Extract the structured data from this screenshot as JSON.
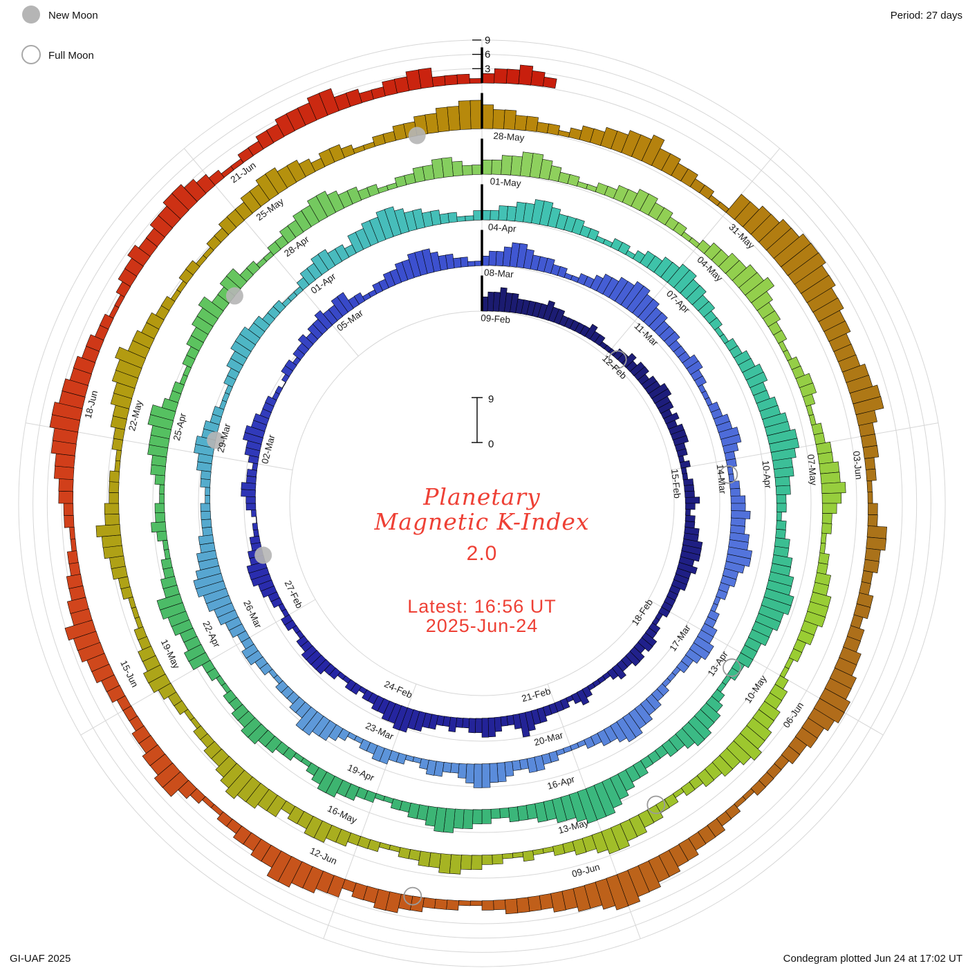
{
  "header": {
    "period": "Period: 27 days"
  },
  "legend": {
    "new_moon": "New Moon",
    "full_moon": "Full Moon"
  },
  "footer": {
    "credit": "GI-UAF 2025",
    "plotted": "Condegram plotted Jun 24 at 17:02 UT"
  },
  "center": {
    "title1": "Planetary",
    "title2": "Magnetic K-Index",
    "current_k": "2.0",
    "latest_time": "Latest: 16:56 UT",
    "latest_date": "2025-Jun-24",
    "scale_max": "9",
    "scale_min": "0"
  },
  "colors": {
    "text_red": "#ee4035",
    "grid": "#d6d6d6",
    "bar_outline": "#000000",
    "moon_gray": "#b5b5b5"
  },
  "chart_data": {
    "type": "polar-spiral-bar",
    "description": "Condegram: planetary magnetic K-index, 3-hour K bars spiraling clockwise from top; one ring = 27 days (09-Feb-2025 through 24-Jun-2025)",
    "start_date": "2025-02-09",
    "days_per_ring": 27,
    "bars_per_day": 8,
    "k_range": [
      0,
      9
    ],
    "radial_ticks": [
      "3",
      "6",
      "9"
    ],
    "date_labels": [
      "09-Feb",
      "12-Feb",
      "15-Feb",
      "18-Feb",
      "21-Feb",
      "24-Feb",
      "27-Feb",
      "02-Mar",
      "05-Mar",
      "08-Mar",
      "11-Mar",
      "14-Mar",
      "17-Mar",
      "20-Mar",
      "23-Mar",
      "26-Mar",
      "29-Mar",
      "01-Apr",
      "04-Apr",
      "07-Apr",
      "10-Apr",
      "13-Apr",
      "16-Apr",
      "19-Apr",
      "22-Apr",
      "25-Apr",
      "28-Apr",
      "01-May",
      "04-May",
      "07-May",
      "10-May",
      "13-May",
      "16-May",
      "19-May",
      "22-May",
      "25-May",
      "28-May",
      "31-May",
      "03-Jun",
      "06-Jun",
      "09-Jun",
      "12-Jun",
      "15-Jun",
      "18-Jun",
      "21-Jun"
    ],
    "periods": [
      {
        "start": "09-Feb",
        "days": [
          "34454433",
          "33343322",
          "22232211",
          "12232332",
          "33443323",
          "23332212",
          "11222321",
          "22334443",
          "43332222",
          "21122332",
          "33223211",
          "11232122",
          "22334532",
          "23443322",
          "32233445",
          "54433221",
          "22112233",
          "33221122",
          "11223344",
          "43322110",
          "12233221",
          "23344332",
          "22110122",
          "12232334",
          "33442211",
          "22334455",
          "54332211"
        ]
      },
      {
        "start": "08-Mar",
        "days": [
          "23345543",
          "33221122",
          "34455665",
          "54433322",
          "23322111",
          "22334432",
          "21122334",
          "33445543",
          "32211223",
          "34432211",
          "12233445",
          "54332211",
          "11223322",
          "34455432",
          "23321122",
          "33221123",
          "44553322",
          "21122332",
          "23344556",
          "65443322",
          "22112233",
          "44332211",
          "12233444",
          "33222111",
          "23344332",
          "44556654",
          "43322112"
        ]
      },
      {
        "start": "04-Apr",
        "days": [
          "22334455",
          "43332211",
          "22123344",
          "55443322",
          "11223344",
          "33445566",
          "54433221",
          "22334455",
          "66554433",
          "32211234",
          "45543322",
          "23345677",
          "76554433",
          "32233445",
          "54332211",
          "22334432",
          "11223344",
          "33221122",
          "44334455",
          "33221123",
          "22112334",
          "44553221",
          "12233445",
          "33442211",
          "22334455",
          "43322112",
          "23344322"
        ]
      },
      {
        "start": "01-May",
        "days": [
          "33445543",
          "22112233",
          "44332211",
          "23344556",
          "43322112",
          "23321122",
          "33445432",
          "21122334",
          "44332211",
          "23344556",
          "54433221",
          "22334455",
          "43322112",
          "11223344",
          "33221122",
          "23344332",
          "44556543",
          "32211223",
          "44332211",
          "12233445",
          "33222112",
          "23344556",
          "44332211",
          "22112233",
          "34455443",
          "23321122",
          "33445566"
        ]
      },
      {
        "start": "28-May",
        "days": [
          "54433221",
          "23344556",
          "44332211",
          "55667788",
          "87766554",
          "44556643",
          "33221122",
          "44332233",
          "23344556",
          "65443322",
          "22112233",
          "34455667",
          "76554433",
          "33221122",
          "23344332",
          "44556644",
          "33221123",
          "55443322",
          "23344556",
          "44332211",
          "22334455",
          "66554433",
          "22112334",
          "33445543",
          "21122334",
          "44553322",
          "33442221"
        ]
      },
      {
        "start": "24-Jun",
        "days": [
          "233432"
        ]
      }
    ],
    "moons": [
      {
        "type": "full",
        "date": "2025-02-12",
        "day": 3
      },
      {
        "type": "new",
        "date": "2025-02-28",
        "day": 19
      },
      {
        "type": "full",
        "date": "2025-03-14",
        "day": 33
      },
      {
        "type": "new",
        "date": "2025-03-29",
        "day": 48
      },
      {
        "type": "full",
        "date": "2025-04-13",
        "day": 63
      },
      {
        "type": "new",
        "date": "2025-04-27",
        "day": 77
      },
      {
        "type": "full",
        "date": "2025-05-12",
        "day": 92
      },
      {
        "type": "new",
        "date": "2025-05-27",
        "day": 107
      },
      {
        "type": "full",
        "date": "2025-06-11",
        "day": 122
      }
    ],
    "colormap": [
      [
        0,
        "#1b1b6f"
      ],
      [
        0.06,
        "#1f1f85"
      ],
      [
        0.13,
        "#2727a8"
      ],
      [
        0.19,
        "#3c50cf"
      ],
      [
        0.26,
        "#5577dd"
      ],
      [
        0.32,
        "#5e9ad9"
      ],
      [
        0.37,
        "#4db8c4"
      ],
      [
        0.41,
        "#3fc4ae"
      ],
      [
        0.46,
        "#3abd8c"
      ],
      [
        0.51,
        "#3cb371"
      ],
      [
        0.56,
        "#59c25f"
      ],
      [
        0.6,
        "#8ed05f"
      ],
      [
        0.66,
        "#9acd32"
      ],
      [
        0.71,
        "#a9ad1f"
      ],
      [
        0.76,
        "#b39a10"
      ],
      [
        0.8,
        "#b8860b"
      ],
      [
        0.85,
        "#aa721a"
      ],
      [
        0.89,
        "#c05f1a"
      ],
      [
        0.94,
        "#d2431c"
      ],
      [
        1,
        "#c81d0c"
      ]
    ]
  }
}
